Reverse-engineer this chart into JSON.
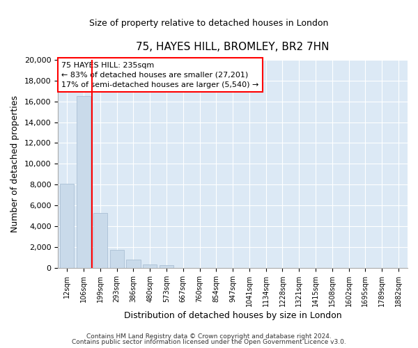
{
  "title": "75, HAYES HILL, BROMLEY, BR2 7HN",
  "subtitle": "Size of property relative to detached houses in London",
  "xlabel": "Distribution of detached houses by size in London",
  "ylabel": "Number of detached properties",
  "bar_labels": [
    "12sqm",
    "106sqm",
    "199sqm",
    "293sqm",
    "386sqm",
    "480sqm",
    "573sqm",
    "667sqm",
    "760sqm",
    "854sqm",
    "947sqm",
    "1041sqm",
    "1134sqm",
    "1228sqm",
    "1321sqm",
    "1415sqm",
    "1508sqm",
    "1602sqm",
    "1695sqm",
    "1789sqm",
    "1882sqm"
  ],
  "bar_values": [
    8100,
    16500,
    5300,
    1750,
    800,
    300,
    270,
    0,
    0,
    0,
    0,
    0,
    0,
    0,
    0,
    0,
    0,
    0,
    0,
    0,
    0
  ],
  "bar_color": "#c9daea",
  "bar_edge_color": "#aabfd4",
  "vline_color": "red",
  "ylim": [
    0,
    20000
  ],
  "yticks": [
    0,
    2000,
    4000,
    6000,
    8000,
    10000,
    12000,
    14000,
    16000,
    18000,
    20000
  ],
  "annotation_title": "75 HAYES HILL: 235sqm",
  "annotation_line1": "← 83% of detached houses are smaller (27,201)",
  "annotation_line2": "17% of semi-detached houses are larger (5,540) →",
  "annotation_box_color": "#ffffff",
  "annotation_box_edge": "red",
  "footer_line1": "Contains HM Land Registry data © Crown copyright and database right 2024.",
  "footer_line2": "Contains public sector information licensed under the Open Government Licence v3.0.",
  "background_color": "#ffffff",
  "plot_background": "#dce9f5",
  "grid_color": "#ffffff"
}
